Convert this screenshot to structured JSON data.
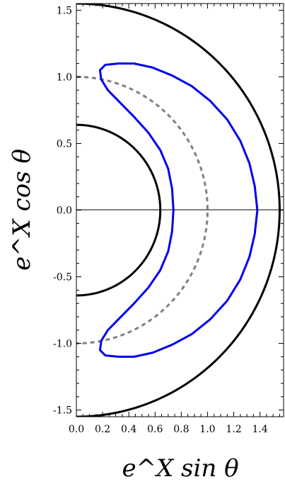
{
  "chart_data": {
    "type": "line",
    "title": "",
    "xlabel": "e^X sin θ",
    "ylabel": "e^X cos θ",
    "xlim": [
      0,
      1.58
    ],
    "ylim": [
      -1.55,
      1.55
    ],
    "grid": false,
    "x_ticks": [
      0.0,
      0.2,
      0.4,
      0.6,
      0.8,
      1.0,
      1.2,
      1.4
    ],
    "x_tick_labels": [
      "0.0",
      "0.2",
      "0.4",
      "0.6",
      "0.8",
      "1.0",
      "1.2",
      "1.4"
    ],
    "y_ticks": [
      1.5,
      1.0,
      0.5,
      0.0,
      -0.5,
      -1.0,
      -1.5
    ],
    "y_tick_labels": [
      "1.5",
      "1.0",
      "0.5",
      "0.0",
      "-0.5",
      "-1.0",
      "-1.5"
    ],
    "series": [
      {
        "color": "#000000",
        "style": "solid",
        "radius": 0.64
      },
      {
        "color": "#000000",
        "style": "solid",
        "radius": 1.55
      },
      {
        "color": "#808080",
        "style": "dashed",
        "radius": 1.0
      },
      {
        "color": "#0000ee",
        "style": "solid",
        "x": [
          0.74,
          0.73,
          0.7,
          0.64,
          0.55,
          0.44,
          0.33,
          0.24,
          0.19,
          0.18,
          0.22,
          0.32,
          0.44,
          0.58,
          0.73,
          0.88,
          1.02,
          1.15,
          1.25,
          1.32,
          1.36,
          1.38,
          1.36,
          1.32,
          1.25,
          1.15,
          1.02,
          0.88,
          0.73,
          0.58,
          0.44,
          0.32,
          0.22,
          0.18,
          0.19,
          0.24,
          0.33,
          0.44,
          0.55,
          0.64,
          0.7,
          0.73,
          0.74
        ],
        "y": [
          0.0,
          0.16,
          0.31,
          0.45,
          0.58,
          0.7,
          0.81,
          0.9,
          0.98,
          1.05,
          1.09,
          1.1,
          1.1,
          1.07,
          1.01,
          0.93,
          0.82,
          0.68,
          0.52,
          0.35,
          0.18,
          0.0,
          -0.18,
          -0.35,
          -0.52,
          -0.68,
          -0.82,
          -0.93,
          -1.01,
          -1.07,
          -1.1,
          -1.1,
          -1.09,
          -1.05,
          -0.98,
          -0.9,
          -0.81,
          -0.7,
          -0.58,
          -0.45,
          -0.31,
          -0.16,
          0.0
        ]
      }
    ]
  }
}
